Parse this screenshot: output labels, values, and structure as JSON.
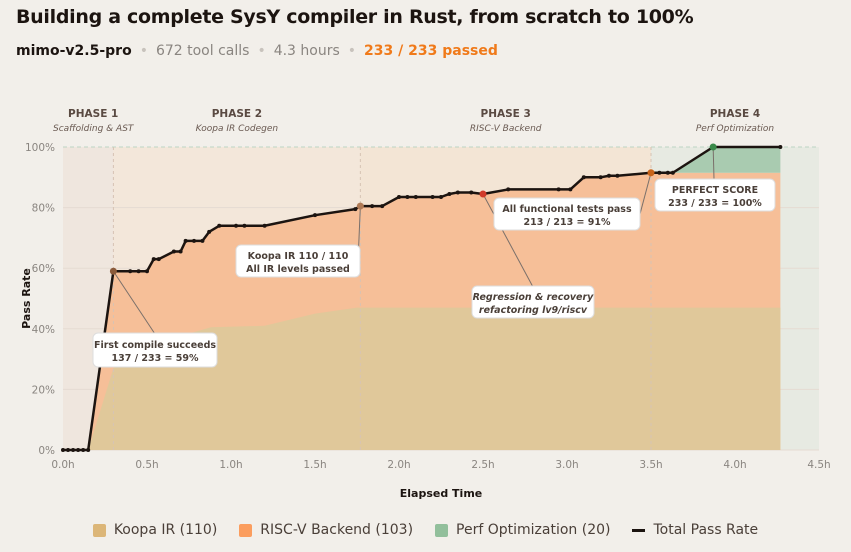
{
  "header": {
    "title": "Building a complete SysY compiler in Rust, from scratch to 100%",
    "model": "mimo-v2.5-pro",
    "tool_calls": "672 tool calls",
    "hours": "4.3 hours",
    "passed": "233 / 233 passed"
  },
  "chart_data": {
    "type": "area",
    "xlabel": "Elapsed Time",
    "ylabel": "Pass Rate",
    "xlim": [
      0,
      4.5
    ],
    "ylim": [
      0,
      100
    ],
    "x_ticks": [
      "0.0h",
      "0.5h",
      "1.0h",
      "1.5h",
      "2.0h",
      "2.5h",
      "3.0h",
      "3.5h",
      "4.0h",
      "4.5h"
    ],
    "y_ticks": [
      "0%",
      "20%",
      "40%",
      "60%",
      "80%",
      "100%"
    ],
    "phases": [
      {
        "label": "PHASE 1",
        "sub": "Scaffolding & AST",
        "start": 0,
        "end": 0.3
      },
      {
        "label": "PHASE 2",
        "sub": "Koopa IR Codegen",
        "start": 0.3,
        "end": 1.77
      },
      {
        "label": "PHASE 3",
        "sub": "RISC-V Backend",
        "start": 1.77,
        "end": 3.5
      },
      {
        "label": "PHASE 4",
        "sub": "Perf Optimization",
        "start": 3.5,
        "end": 4.5
      }
    ],
    "colors": {
      "koopa": "#e0c89a",
      "riscv": "#f6bf98",
      "perf": "#a9cbb0",
      "line": "#1c1410"
    },
    "koopa_area": [
      [
        0.15,
        0
      ],
      [
        0.3,
        27
      ],
      [
        0.6,
        36
      ],
      [
        0.88,
        40.5
      ],
      [
        1.2,
        41
      ],
      [
        1.5,
        45
      ],
      [
        1.75,
        47
      ],
      [
        2.5,
        47
      ],
      [
        4.27,
        47
      ]
    ],
    "total_pass_rate": [
      [
        0,
        0
      ],
      [
        0.03,
        0
      ],
      [
        0.06,
        0
      ],
      [
        0.09,
        0
      ],
      [
        0.12,
        0
      ],
      [
        0.15,
        0
      ],
      [
        0.3,
        59
      ],
      [
        0.4,
        59
      ],
      [
        0.45,
        59
      ],
      [
        0.5,
        59
      ],
      [
        0.54,
        63
      ],
      [
        0.57,
        63
      ],
      [
        0.66,
        65.5
      ],
      [
        0.7,
        65.5
      ],
      [
        0.73,
        69
      ],
      [
        0.78,
        69
      ],
      [
        0.83,
        69
      ],
      [
        0.87,
        72
      ],
      [
        0.93,
        74
      ],
      [
        1.03,
        74
      ],
      [
        1.08,
        74
      ],
      [
        1.2,
        74
      ],
      [
        1.5,
        77.5
      ],
      [
        1.74,
        79.5
      ],
      [
        1.77,
        80.5
      ],
      [
        1.84,
        80.5
      ],
      [
        1.9,
        80.5
      ],
      [
        2.0,
        83.5
      ],
      [
        2.05,
        83.5
      ],
      [
        2.1,
        83.5
      ],
      [
        2.2,
        83.5
      ],
      [
        2.25,
        83.5
      ],
      [
        2.3,
        84.5
      ],
      [
        2.35,
        85
      ],
      [
        2.43,
        85
      ],
      [
        2.5,
        84.5
      ],
      [
        2.65,
        86
      ],
      [
        2.95,
        86
      ],
      [
        3.02,
        86
      ],
      [
        3.1,
        90
      ],
      [
        3.2,
        90
      ],
      [
        3.25,
        90.5
      ],
      [
        3.3,
        90.5
      ],
      [
        3.5,
        91.5
      ],
      [
        3.55,
        91.5
      ],
      [
        3.6,
        91.5
      ],
      [
        3.63,
        91.5
      ],
      [
        3.87,
        100
      ],
      [
        4.27,
        100
      ]
    ],
    "perf_base": 91.5,
    "annotations": [
      {
        "x": 0.3,
        "y": 59,
        "lines": [
          "First compile succeeds",
          "137 / 233 = 59%"
        ],
        "color": "#8a5a3a"
      },
      {
        "x": 1.77,
        "y": 80.5,
        "lines": [
          "Koopa IR 110 / 110",
          "All IR levels passed"
        ],
        "color": "#b07a55"
      },
      {
        "x": 2.5,
        "y": 84.5,
        "lines": [
          "Regression & recovery",
          "refactoring lv9/riscv"
        ],
        "color": "#d03a2a"
      },
      {
        "x": 3.5,
        "y": 91.5,
        "lines": [
          "All functional tests pass",
          "213 / 213 = 91%"
        ],
        "color": "#c8641a"
      },
      {
        "x": 3.87,
        "y": 100,
        "lines": [
          "PERFECT SCORE",
          "233 / 233 = 100%"
        ],
        "color": "#3a8a4a"
      }
    ],
    "legend": [
      {
        "label": "Koopa IR (110)",
        "color": "#dcb678"
      },
      {
        "label": "RISC-V Backend (103)",
        "color": "#fb9d5e"
      },
      {
        "label": "Perf Optimization (20)",
        "color": "#92bf9b"
      },
      {
        "label": "Total Pass Rate",
        "color": "#1c1410"
      }
    ]
  }
}
